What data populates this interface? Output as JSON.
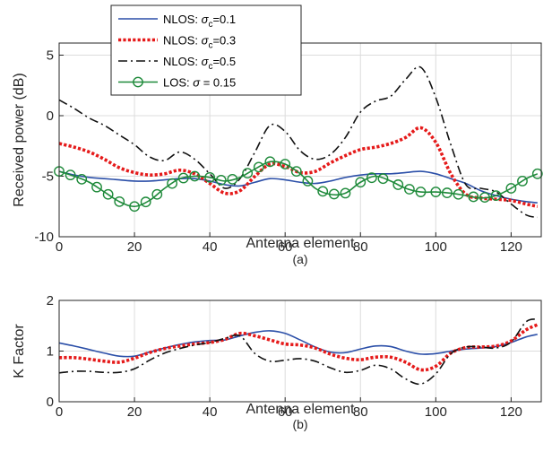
{
  "chart_data": [
    {
      "type": "line",
      "panel": "(a)",
      "xlabel": "Antenna element",
      "ylabel": "Received power (dB)",
      "xlim": [
        0,
        128
      ],
      "ylim": [
        -10,
        6
      ],
      "xticks": [
        "0",
        "20",
        "40",
        "60",
        "80",
        "100",
        "120"
      ],
      "yticks": [
        "-10",
        "-5",
        "0",
        "5"
      ],
      "grid": true,
      "legend": "top-left",
      "colors": {
        "nlos01": "#2b4fa8",
        "nlos03": "#e51a1a",
        "nlos05": "#111111",
        "los": "#1e8a3a"
      },
      "legend_entries": [
        {
          "key": "nlos01",
          "prefix": "NLOS: ",
          "greek": "σ",
          "sub": "c",
          "suffix": "=0.1"
        },
        {
          "key": "nlos03",
          "prefix": "NLOS: ",
          "greek": "σ",
          "sub": "c",
          "suffix": "=0.3"
        },
        {
          "key": "nlos05",
          "prefix": "NLOS: ",
          "greek": "σ",
          "sub": "c",
          "suffix": "=0.5"
        },
        {
          "key": "los",
          "prefix": "LOS: ",
          "greek": "σ",
          "sub": "",
          "suffix": " = 0.15"
        }
      ],
      "x": [
        0,
        4,
        8,
        12,
        16,
        20,
        24,
        28,
        32,
        36,
        40,
        44,
        48,
        52,
        56,
        60,
        64,
        68,
        72,
        76,
        80,
        84,
        88,
        92,
        96,
        100,
        104,
        108,
        112,
        116,
        120,
        124,
        127
      ],
      "series": [
        {
          "key": "nlos01",
          "name": "NLOS: σc=0.1",
          "values": [
            -4.6,
            -4.9,
            -5.1,
            -5.2,
            -5.3,
            -5.4,
            -5.4,
            -5.3,
            -5.2,
            -5.2,
            -5.4,
            -5.7,
            -5.8,
            -5.5,
            -5.2,
            -5.3,
            -5.5,
            -5.6,
            -5.4,
            -5.1,
            -4.9,
            -4.8,
            -4.8,
            -4.7,
            -4.6,
            -4.8,
            -5.2,
            -5.6,
            -6.2,
            -6.6,
            -6.9,
            -7.1,
            -7.2
          ]
        },
        {
          "key": "nlos03",
          "name": "NLOS: σc=0.3",
          "values": [
            -2.3,
            -2.6,
            -3.0,
            -3.6,
            -4.3,
            -4.7,
            -4.9,
            -4.8,
            -4.5,
            -4.8,
            -5.6,
            -6.4,
            -6.2,
            -5.0,
            -4.0,
            -4.2,
            -4.7,
            -4.6,
            -3.9,
            -3.3,
            -2.8,
            -2.6,
            -2.3,
            -1.8,
            -1.0,
            -2.2,
            -4.8,
            -6.5,
            -6.8,
            -6.9,
            -7.0,
            -7.3,
            -7.5
          ]
        },
        {
          "key": "nlos05",
          "name": "NLOS: σc=0.5",
          "values": [
            1.3,
            0.6,
            -0.2,
            -0.8,
            -1.6,
            -2.4,
            -3.4,
            -3.7,
            -3.0,
            -3.6,
            -4.8,
            -6.0,
            -5.2,
            -3.0,
            -0.8,
            -1.3,
            -2.9,
            -3.6,
            -3.2,
            -1.8,
            0.3,
            1.2,
            1.6,
            3.0,
            4.0,
            1.5,
            -2.4,
            -5.7,
            -6.0,
            -6.3,
            -7.3,
            -8.2,
            -8.4
          ]
        },
        {
          "key": "los",
          "name": "LOS: σ = 0.15",
          "values": [
            -4.6,
            -5.0,
            -5.5,
            -6.3,
            -7.1,
            -7.5,
            -7.0,
            -6.0,
            -5.2,
            -5.0,
            -5.1,
            -5.4,
            -5.1,
            -4.4,
            -3.8,
            -4.0,
            -4.8,
            -6.0,
            -6.5,
            -6.4,
            -5.5,
            -5.0,
            -5.4,
            -6.0,
            -6.3,
            -6.3,
            -6.4,
            -6.6,
            -6.8,
            -6.6,
            -6.0,
            -5.2,
            -4.8
          ]
        }
      ],
      "los_marker_x": [
        0,
        3,
        6,
        10,
        13,
        16,
        20,
        23,
        26,
        30,
        33,
        36,
        40,
        43,
        46,
        50,
        53,
        56,
        60,
        63,
        66,
        70,
        73,
        76,
        80,
        83,
        86,
        90,
        93,
        96,
        100,
        103,
        106,
        110,
        113,
        116,
        120,
        123,
        127
      ],
      "caption": "(a)"
    },
    {
      "type": "line",
      "panel": "(b)",
      "xlabel": "Antenna element",
      "ylabel": "K Factor",
      "xlim": [
        0,
        128
      ],
      "ylim": [
        0,
        2
      ],
      "xticks": [
        "0",
        "20",
        "40",
        "60",
        "80",
        "100",
        "120"
      ],
      "yticks": [
        "0",
        "1",
        "2"
      ],
      "grid": true,
      "x": [
        0,
        4,
        8,
        12,
        16,
        20,
        24,
        28,
        32,
        36,
        40,
        44,
        48,
        52,
        56,
        60,
        64,
        68,
        72,
        76,
        80,
        84,
        88,
        92,
        96,
        100,
        104,
        108,
        112,
        116,
        120,
        124,
        127
      ],
      "series": [
        {
          "key": "nlos01",
          "name": "NLOS: σc=0.1",
          "values": [
            1.16,
            1.1,
            1.03,
            0.96,
            0.9,
            0.9,
            0.98,
            1.06,
            1.13,
            1.18,
            1.21,
            1.22,
            1.3,
            1.37,
            1.4,
            1.35,
            1.22,
            1.08,
            0.98,
            0.97,
            1.04,
            1.1,
            1.09,
            1.0,
            0.94,
            0.95,
            1.0,
            1.04,
            1.06,
            1.09,
            1.17,
            1.28,
            1.33
          ]
        },
        {
          "key": "nlos03",
          "name": "NLOS: σc=0.3",
          "values": [
            0.87,
            0.87,
            0.84,
            0.8,
            0.78,
            0.86,
            0.97,
            1.05,
            1.1,
            1.14,
            1.17,
            1.23,
            1.35,
            1.3,
            1.22,
            1.14,
            1.12,
            1.06,
            0.94,
            0.86,
            0.83,
            0.88,
            0.88,
            0.78,
            0.63,
            0.7,
            0.96,
            1.07,
            1.08,
            1.1,
            1.2,
            1.42,
            1.52
          ]
        },
        {
          "key": "nlos05",
          "name": "NLOS: σc=0.5",
          "values": [
            0.57,
            0.6,
            0.6,
            0.58,
            0.58,
            0.65,
            0.82,
            0.96,
            1.05,
            1.12,
            1.17,
            1.25,
            1.3,
            0.95,
            0.8,
            0.82,
            0.85,
            0.8,
            0.67,
            0.58,
            0.62,
            0.72,
            0.65,
            0.45,
            0.35,
            0.55,
            0.95,
            1.08,
            1.08,
            1.06,
            1.18,
            1.58,
            1.63
          ]
        }
      ],
      "caption": "(b)"
    }
  ]
}
